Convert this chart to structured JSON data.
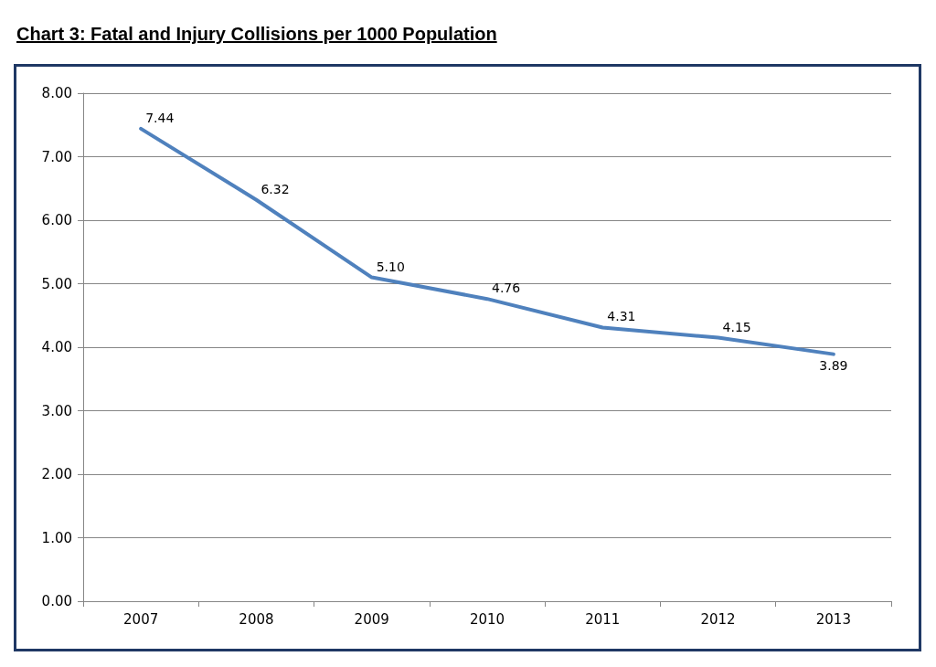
{
  "chart_data": {
    "type": "line",
    "title": "Chart 3: Fatal and Injury Collisions per 1000 Population",
    "categories": [
      "2007",
      "2008",
      "2009",
      "2010",
      "2011",
      "2012",
      "2013"
    ],
    "series": [
      {
        "color": "#4f81bd",
        "values": [
          7.44,
          6.32,
          5.1,
          4.76,
          4.31,
          4.15,
          3.89
        ],
        "value_labels": [
          "7.44",
          "6.32",
          "5.10",
          "4.76",
          "4.31",
          "4.15",
          "3.89"
        ]
      }
    ],
    "ylim": [
      0,
      8
    ],
    "yticks": [
      {
        "value": 0,
        "label": "0.00"
      },
      {
        "value": 1,
        "label": "1.00"
      },
      {
        "value": 2,
        "label": "2.00"
      },
      {
        "value": 3,
        "label": "3.00"
      },
      {
        "value": 4,
        "label": "4.00"
      },
      {
        "value": 5,
        "label": "5.00"
      },
      {
        "value": 6,
        "label": "6.00"
      },
      {
        "value": 7,
        "label": "7.00"
      },
      {
        "value": 8,
        "label": "8.00"
      }
    ],
    "grid": "y",
    "marker": "none",
    "line_style": "solid"
  }
}
